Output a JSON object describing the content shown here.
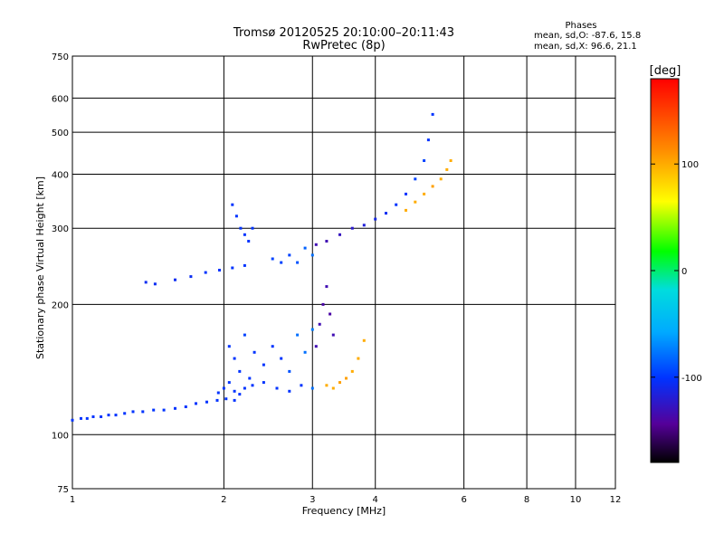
{
  "chart_data": {
    "type": "scatter",
    "title": "Tromsø 20120525 20:10:00–20:11:43",
    "subtitle": "RwPretec (8p)",
    "xlabel": "Frequency [MHz]",
    "ylabel": "Stationary phase Virtual Height [km]",
    "x_scale": "log",
    "y_scale": "log",
    "xlim": [
      1,
      12
    ],
    "ylim": [
      75,
      750
    ],
    "x_ticks": [
      1,
      2,
      3,
      4,
      6,
      8,
      10,
      12
    ],
    "x_tick_labels": [
      "1",
      "2",
      "3",
      "4",
      "6",
      "8",
      "10",
      "12"
    ],
    "y_ticks": [
      75,
      100,
      200,
      300,
      400,
      500,
      600,
      750
    ],
    "y_tick_labels": [
      "75",
      "100",
      "200",
      "300",
      "400",
      "500",
      "600",
      "750"
    ],
    "grid": true,
    "phases": {
      "heading": "Phases",
      "line_o": "mean, sd,O: -87.6, 15.8",
      "line_x": "mean, sd,X:  96.6, 21.1"
    },
    "colorbar": {
      "label": "[deg]",
      "range": [
        -180,
        180
      ],
      "ticks": [
        100,
        0,
        -100
      ],
      "tick_labels": [
        "100",
        "0",
        "-100"
      ]
    },
    "series": [
      {
        "x": [
          1.0,
          1.04,
          1.07,
          1.1,
          1.14,
          1.18,
          1.22,
          1.27,
          1.32,
          1.38,
          1.45,
          1.52,
          1.6,
          1.68,
          1.76,
          1.85,
          1.94,
          2.02,
          2.1
        ],
        "y": [
          108,
          109,
          109,
          110,
          110,
          111,
          111,
          112,
          113,
          113,
          114,
          114,
          115,
          116,
          118,
          119,
          120,
          121,
          120
        ],
        "phase": [
          -100,
          -100,
          -100,
          -100,
          -100,
          -100,
          -100,
          -100,
          -100,
          -100,
          -100,
          -100,
          -100,
          -100,
          -100,
          -100,
          -100,
          -100,
          -100
        ]
      },
      {
        "x": [
          1.4,
          1.46,
          1.6,
          1.72,
          1.84,
          1.96,
          2.08,
          2.2
        ],
        "y": [
          225,
          223,
          228,
          232,
          237,
          240,
          243,
          246
        ],
        "phase": [
          -105,
          -105,
          -105,
          -105,
          -100,
          -100,
          -100,
          -100
        ]
      },
      {
        "x": [
          1.95,
          2.0,
          2.05,
          2.1,
          2.15,
          2.2,
          2.28,
          2.4,
          2.55,
          2.7,
          2.85,
          3.0
        ],
        "y": [
          125,
          128,
          132,
          126,
          124,
          128,
          130,
          132,
          128,
          126,
          130,
          128
        ],
        "phase": [
          -100,
          -100,
          -100,
          -100,
          -100,
          -100,
          -100,
          -100,
          -100,
          -100,
          -100,
          -80
        ]
      },
      {
        "x": [
          2.05,
          2.1,
          2.15,
          2.2,
          2.25,
          2.3,
          2.4,
          2.5,
          2.6,
          2.7,
          2.8,
          2.9,
          3.0
        ],
        "y": [
          160,
          150,
          140,
          170,
          135,
          155,
          145,
          160,
          150,
          140,
          170,
          155,
          175
        ],
        "phase": [
          -100,
          -100,
          -100,
          -95,
          -100,
          -100,
          -100,
          -100,
          -100,
          -90,
          -80,
          -80,
          -75
        ]
      },
      {
        "x": [
          2.08,
          2.12,
          2.16,
          2.2,
          2.24,
          2.28
        ],
        "y": [
          340,
          320,
          300,
          290,
          280,
          300
        ],
        "phase": [
          -100,
          -100,
          -100,
          -100,
          -100,
          -100
        ]
      },
      {
        "x": [
          2.5,
          2.6,
          2.7,
          2.8,
          2.9,
          3.0
        ],
        "y": [
          255,
          250,
          260,
          250,
          270,
          260
        ],
        "phase": [
          -95,
          -95,
          -95,
          -90,
          -85,
          -80
        ]
      },
      {
        "x": [
          3.05,
          3.2,
          3.4,
          3.6,
          3.8,
          4.0,
          4.2,
          4.4,
          4.6,
          4.8,
          5.0,
          5.1,
          5.2
        ],
        "y": [
          275,
          280,
          290,
          300,
          305,
          315,
          325,
          340,
          360,
          390,
          430,
          480,
          550
        ],
        "phase": [
          -130,
          -130,
          -125,
          -120,
          -115,
          -110,
          -105,
          -100,
          -100,
          -95,
          -95,
          -100,
          -100
        ]
      },
      {
        "x": [
          3.05,
          3.1,
          3.15,
          3.2,
          3.25,
          3.3
        ],
        "y": [
          160,
          180,
          200,
          220,
          190,
          170
        ],
        "phase": [
          -130,
          -130,
          -135,
          -130,
          -135,
          -130
        ]
      },
      {
        "x": [
          3.2,
          3.3,
          3.4,
          3.5,
          3.6,
          3.7,
          3.8
        ],
        "y": [
          130,
          128,
          132,
          135,
          140,
          150,
          165
        ],
        "phase": [
          100,
          100,
          105,
          105,
          100,
          100,
          100
        ]
      },
      {
        "x": [
          4.6,
          4.8,
          5.0,
          5.2,
          5.4,
          5.55,
          5.65
        ],
        "y": [
          330,
          345,
          360,
          375,
          390,
          410,
          430
        ],
        "phase": [
          100,
          100,
          100,
          105,
          100,
          100,
          100
        ]
      }
    ]
  }
}
